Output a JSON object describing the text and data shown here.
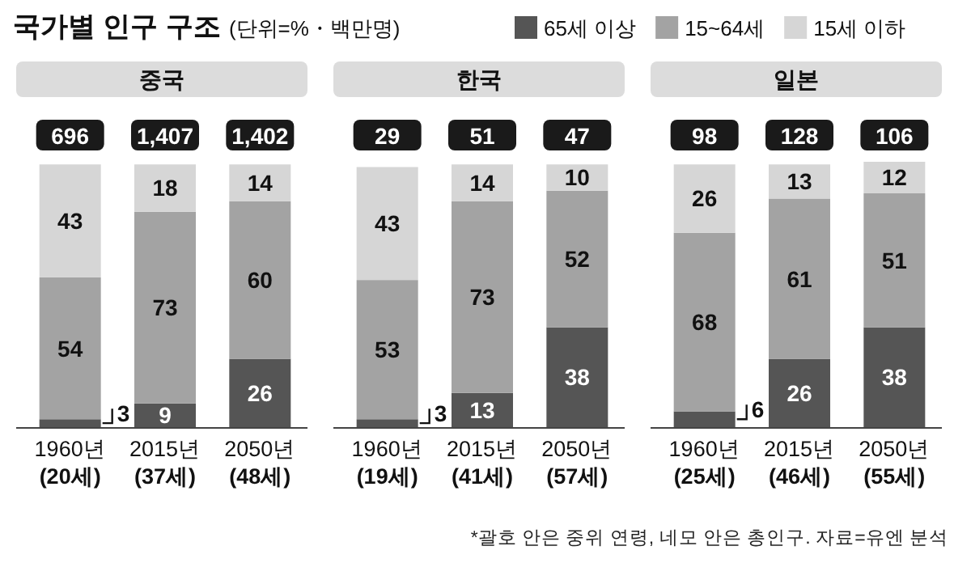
{
  "chart_data": [
    {
      "type": "bar",
      "stacked": true,
      "title": "중국",
      "annotations": [
        "696",
        "1,407",
        "1,402",
        "국가별 인구 구조",
        "(단위=%・백만명)"
      ],
      "legend": "top right",
      "data_labels": true,
      "categories": [
        "1960년\n(20세)",
        "2015년\n(37세)",
        "2050년\n(48세)"
      ],
      "series": [
        {
          "name": "65세 이상",
          "color": "#555555",
          "values": [
            3,
            9,
            26
          ]
        },
        {
          "name": "15~64세",
          "color": "#a3a3a3",
          "values": [
            54,
            73,
            60
          ]
        },
        {
          "name": "15세 이하",
          "color": "#d6d6d6",
          "values": [
            43,
            18,
            14
          ]
        }
      ]
    },
    {
      "type": "bar",
      "stacked": true,
      "title": "한국",
      "annotations": [
        "29",
        "51",
        "47"
      ],
      "data_labels": true,
      "categories": [
        "1960년\n(19세)",
        "2015년\n(41세)",
        "2050년\n(57세)"
      ],
      "series": [
        {
          "color": "#555555",
          "values": [
            3,
            13,
            38
          ]
        },
        {
          "color": "#a3a3a3",
          "values": [
            53,
            73,
            52
          ]
        },
        {
          "color": "#d6d6d6",
          "values": [
            43,
            14,
            10
          ]
        }
      ]
    },
    {
      "type": "bar",
      "stacked": true,
      "title": "일본",
      "annotations": [
        "98",
        "128",
        "106",
        "*괄호 안은 중위 연령, 네모 안은 총인구. 자료=유엔 분석"
      ],
      "data_labels": true,
      "categories": [
        "1960년\n(25세)",
        "2015년\n(46세)",
        "2050년\n(55세)"
      ],
      "series": [
        {
          "color": "#555555",
          "values": [
            6,
            26,
            38
          ]
        },
        {
          "color": "#a3a3a3",
          "values": [
            68,
            61,
            51
          ]
        },
        {
          "color": "#d6d6d6",
          "values": [
            26,
            13,
            12
          ]
        }
      ]
    }
  ]
}
